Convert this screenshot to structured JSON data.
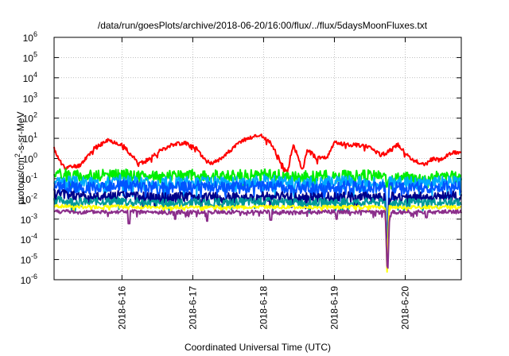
{
  "chart_data": {
    "type": "line",
    "title": "/data/run/goesPlots/archive/2018-06-20/16:00/flux/../flux/5daysMoonFluxes.txt",
    "xlabel": "Coordinated Universal Time (UTC)",
    "ylabel": {
      "base": "protons/cm",
      "sup": "2",
      "rest": "-s-sr-MeV"
    },
    "y_scale": "log",
    "ylim": [
      1e-06,
      1000000.0
    ],
    "xlim": [
      "2018-06-15 01:00",
      "2018-06-20 19:00"
    ],
    "grid": true,
    "y_ticks": [
      {
        "mant": "10",
        "exp": "-6"
      },
      {
        "mant": "10",
        "exp": "-5"
      },
      {
        "mant": "10",
        "exp": "-4"
      },
      {
        "mant": "10",
        "exp": "-3"
      },
      {
        "mant": "10",
        "exp": "-2"
      },
      {
        "mant": "10",
        "exp": "-1"
      },
      {
        "mant": "10",
        "exp": "0"
      },
      {
        "mant": "10",
        "exp": "1"
      },
      {
        "mant": "10",
        "exp": "2"
      },
      {
        "mant": "10",
        "exp": "3"
      },
      {
        "mant": "10",
        "exp": "4"
      },
      {
        "mant": "10",
        "exp": "5"
      },
      {
        "mant": "10",
        "exp": "6"
      }
    ],
    "x_ticks": [
      "2018-6-16",
      "2018-6-17",
      "2018-6-18",
      "2018-6-19",
      "2018-6-20"
    ],
    "x_tick_days": [
      16,
      17,
      18,
      19,
      20
    ],
    "series": [
      {
        "color": "#ff0000",
        "width": 2,
        "base": [
          [
            15.0,
            7
          ],
          [
            15.1,
            1
          ],
          [
            15.2,
            0.35
          ],
          [
            15.4,
            0.45
          ],
          [
            15.6,
            3
          ],
          [
            15.8,
            8
          ],
          [
            16.0,
            5
          ],
          [
            16.2,
            0.8
          ],
          [
            16.3,
            0.6
          ],
          [
            16.5,
            2
          ],
          [
            16.7,
            5
          ],
          [
            16.9,
            6
          ],
          [
            17.05,
            3
          ],
          [
            17.2,
            0.7
          ],
          [
            17.3,
            0.6
          ],
          [
            17.5,
            2
          ],
          [
            17.7,
            8
          ],
          [
            17.95,
            15
          ],
          [
            18.1,
            6
          ],
          [
            18.25,
            0.6
          ],
          [
            18.33,
            0.2
          ],
          [
            18.42,
            5
          ],
          [
            18.55,
            0.25
          ],
          [
            18.62,
            3
          ],
          [
            18.75,
            1
          ],
          [
            18.9,
            1.2
          ],
          [
            19.0,
            6
          ],
          [
            19.2,
            5
          ],
          [
            19.5,
            4
          ],
          [
            19.65,
            1.5
          ],
          [
            19.75,
            2
          ],
          [
            19.9,
            5
          ],
          [
            20.0,
            2
          ],
          [
            20.1,
            0.9
          ],
          [
            20.25,
            0.5
          ],
          [
            20.4,
            1
          ],
          [
            20.5,
            0.8
          ],
          [
            20.65,
            2
          ]
        ],
        "noise": 0.1,
        "seed": 11
      },
      {
        "color": "#00ee00",
        "width": 2,
        "base": [
          [
            15.0,
            0.2
          ],
          [
            15.5,
            0.14
          ],
          [
            16.0,
            0.16
          ],
          [
            16.5,
            0.13
          ],
          [
            17.0,
            0.15
          ],
          [
            17.5,
            0.14
          ],
          [
            18.0,
            0.16
          ],
          [
            18.5,
            0.13
          ],
          [
            19.0,
            0.14
          ],
          [
            19.6,
            0.15
          ],
          [
            19.75,
            0.12
          ],
          [
            20.0,
            0.12
          ],
          [
            20.65,
            0.13
          ]
        ],
        "noise": 0.28,
        "seed": 2,
        "dip": [
          19.72,
          19.76,
          0.03
        ]
      },
      {
        "color": "#00aaff",
        "width": 2,
        "base": [
          [
            15.0,
            0.09
          ],
          [
            15.5,
            0.06
          ],
          [
            16.0,
            0.08
          ],
          [
            16.5,
            0.06
          ],
          [
            17.0,
            0.07
          ],
          [
            17.5,
            0.06
          ],
          [
            18.0,
            0.08
          ],
          [
            18.5,
            0.06
          ],
          [
            19.0,
            0.07
          ],
          [
            19.5,
            0.07
          ],
          [
            20.0,
            0.06
          ],
          [
            20.65,
            0.07
          ]
        ],
        "noise": 0.3,
        "seed": 3,
        "dip": [
          19.72,
          19.77,
          1.5e-05
        ]
      },
      {
        "color": "#0055ff",
        "width": 2,
        "base": [
          [
            15.0,
            0.05
          ],
          [
            15.5,
            0.035
          ],
          [
            16.0,
            0.045
          ],
          [
            16.5,
            0.035
          ],
          [
            17.0,
            0.04
          ],
          [
            17.5,
            0.035
          ],
          [
            18.0,
            0.045
          ],
          [
            18.5,
            0.035
          ],
          [
            19.0,
            0.04
          ],
          [
            19.5,
            0.04
          ],
          [
            20.0,
            0.035
          ],
          [
            20.65,
            0.04
          ]
        ],
        "noise": 0.3,
        "seed": 4,
        "dip": [
          19.72,
          19.77,
          1e-05
        ]
      },
      {
        "color": "#00008b",
        "width": 2,
        "base": [
          [
            15.0,
            0.02
          ],
          [
            15.5,
            0.012
          ],
          [
            16.0,
            0.015
          ],
          [
            16.5,
            0.011
          ],
          [
            17.0,
            0.013
          ],
          [
            17.5,
            0.011
          ],
          [
            18.0,
            0.014
          ],
          [
            18.5,
            0.011
          ],
          [
            19.0,
            0.013
          ],
          [
            19.5,
            0.012
          ],
          [
            20.0,
            0.012
          ],
          [
            20.65,
            0.014
          ]
        ],
        "noise": 0.25,
        "seed": 5,
        "dip": [
          19.72,
          19.77,
          5e-06
        ]
      },
      {
        "color": "#009999",
        "width": 2,
        "base": [
          [
            15.0,
            0.009
          ],
          [
            15.5,
            0.007
          ],
          [
            16.0,
            0.008
          ],
          [
            16.5,
            0.006
          ],
          [
            17.0,
            0.007
          ],
          [
            17.5,
            0.0065
          ],
          [
            18.0,
            0.0075
          ],
          [
            18.5,
            0.0065
          ],
          [
            19.0,
            0.007
          ],
          [
            19.5,
            0.0068
          ],
          [
            20.0,
            0.0065
          ],
          [
            20.65,
            0.007
          ]
        ],
        "noise": 0.2,
        "seed": 6,
        "dip": [
          19.72,
          19.77,
          3e-06
        ]
      },
      {
        "color": "#ffff00",
        "width": 2,
        "base": [
          [
            15.0,
            0.0045
          ],
          [
            15.5,
            0.004
          ],
          [
            16.0,
            0.0042
          ],
          [
            16.5,
            0.0038
          ],
          [
            17.0,
            0.004
          ],
          [
            17.5,
            0.0039
          ],
          [
            18.0,
            0.0041
          ],
          [
            18.5,
            0.0039
          ],
          [
            19.0,
            0.004
          ],
          [
            19.5,
            0.004
          ],
          [
            20.0,
            0.0039
          ],
          [
            20.65,
            0.004
          ]
        ],
        "noise": 0.08,
        "seed": 7,
        "dip": [
          19.72,
          19.77,
          2e-06
        ]
      },
      {
        "color": "#8b2e8b",
        "width": 2,
        "base": [
          [
            15.0,
            0.0025
          ],
          [
            15.5,
            0.0022
          ],
          [
            16.0,
            0.0024
          ],
          [
            16.5,
            0.0021
          ],
          [
            17.0,
            0.0023
          ],
          [
            17.5,
            0.0022
          ],
          [
            18.0,
            0.0023
          ],
          [
            18.5,
            0.0021
          ],
          [
            19.0,
            0.0023
          ],
          [
            19.5,
            0.0022
          ],
          [
            20.0,
            0.0022
          ],
          [
            20.65,
            0.0023
          ]
        ],
        "noise": 0.1,
        "seed": 8,
        "dip": [
          19.72,
          19.78,
          1.2e-06
        ],
        "spikes": [
          [
            16.1,
            0.0006
          ],
          [
            17.2,
            0.0008
          ],
          [
            18.1,
            0.0009
          ],
          [
            16.75,
            0.001
          ],
          [
            19.03,
            0.001
          ],
          [
            20.3,
            0.0012
          ]
        ]
      }
    ]
  }
}
